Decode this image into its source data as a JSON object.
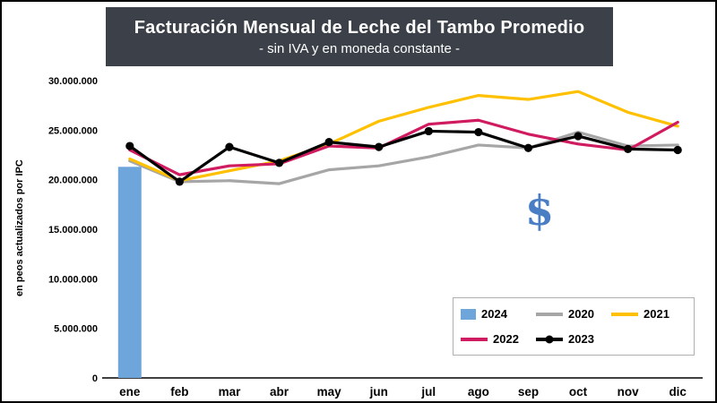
{
  "header": {
    "title": "Facturación Mensual de Leche del Tambo Promedio",
    "subtitle": "- sin IVA y en moneda constante -"
  },
  "y_axis": {
    "label": "en peos actualizados por IPC",
    "tick_labels": [
      "0",
      "5.000.000",
      "10.000.000",
      "15.000.000",
      "20.000.000",
      "25.000.000",
      "30.000.000"
    ],
    "tick_step": 5000000
  },
  "annotation": {
    "symbol": "$",
    "color": "#4a7ec4"
  },
  "colors": {
    "header_bg": "#3b4049",
    "plot_bg": "#ffffff",
    "axis": "#000000"
  },
  "chart_data": {
    "type": "combo-bar-line",
    "title": "Facturación Mensual de Leche del Tambo Promedio",
    "subtitle": "- sin IVA y en moneda constante -",
    "ylabel": "en peos actualizados por IPC",
    "ylim": [
      0,
      30000000
    ],
    "grid": false,
    "legend_position": "inside-bottom-right",
    "categories": [
      "ene",
      "feb",
      "mar",
      "abr",
      "may",
      "jun",
      "jul",
      "ago",
      "sep",
      "oct",
      "nov",
      "dic"
    ],
    "series": [
      {
        "name": "2024",
        "type": "bar",
        "color": "#6ea6dc",
        "values": [
          21300000,
          null,
          null,
          null,
          null,
          null,
          null,
          null,
          null,
          null,
          null,
          null
        ]
      },
      {
        "name": "2020",
        "type": "line",
        "color": "#a6a6a6",
        "values": [
          21900000,
          19800000,
          19900000,
          19600000,
          21000000,
          21400000,
          22300000,
          23500000,
          23200000,
          24800000,
          23400000,
          23500000
        ]
      },
      {
        "name": "2021",
        "type": "line",
        "color": "#ffc000",
        "values": [
          22100000,
          19900000,
          20900000,
          21900000,
          23600000,
          25900000,
          27300000,
          28500000,
          28100000,
          28900000,
          26800000,
          25400000
        ]
      },
      {
        "name": "2022",
        "type": "line",
        "color": "#d01b60",
        "values": [
          23000000,
          20500000,
          21400000,
          21600000,
          23400000,
          23200000,
          25600000,
          26000000,
          24600000,
          23600000,
          23000000,
          25800000
        ]
      },
      {
        "name": "2023",
        "type": "line",
        "color": "#000000",
        "marker": true,
        "values": [
          23400000,
          19800000,
          23300000,
          21700000,
          23800000,
          23300000,
          24900000,
          24800000,
          23200000,
          24400000,
          23100000,
          23000000
        ]
      }
    ]
  }
}
